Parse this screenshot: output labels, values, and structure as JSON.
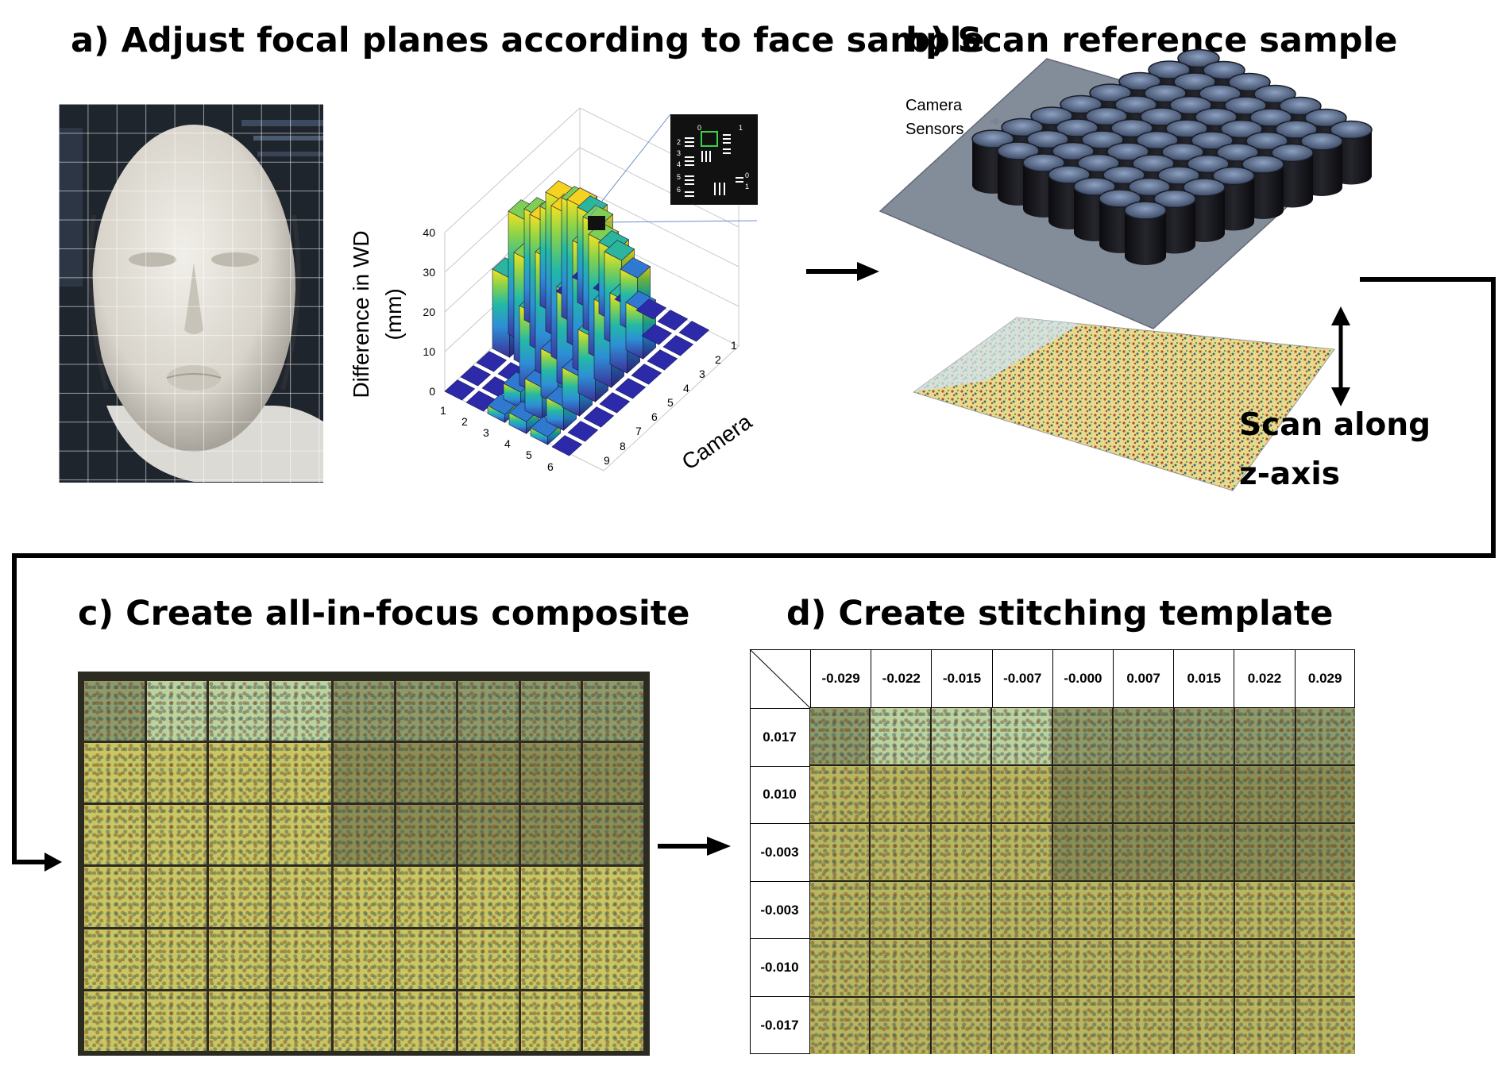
{
  "titles": {
    "a": "a) Adjust focal planes according to face sample",
    "b": "b) Scan reference sample",
    "c": "c) Create all-in-focus composite",
    "d": "d) Create stitching template"
  },
  "panel_a": {
    "chart_data": {
      "type": "bar3d",
      "zlabel_line1": "Difference in WD",
      "zlabel_line2": "(mm)",
      "axis_label_camera": "Camera",
      "z_ticks": [
        "0",
        "10",
        "20",
        "30",
        "40"
      ],
      "x_ticks": [
        "1",
        "2",
        "3",
        "4",
        "5",
        "6"
      ],
      "y_ticks": [
        "1",
        "2",
        "3",
        "4",
        "5",
        "6",
        "7",
        "8",
        "9"
      ],
      "zlim": [
        0,
        40
      ],
      "inset_labels": [
        "0",
        "1",
        "2",
        "3",
        "4",
        "5",
        "6",
        "0",
        "1"
      ]
    }
  },
  "panel_b": {
    "camera_sensors_line1": "Camera",
    "camera_sensors_line2": "Sensors",
    "scan_label_line1": "Scan along",
    "scan_label_line2": "z-axis"
  },
  "panel_d": {
    "column_headers": [
      "-0.029",
      "-0.022",
      "-0.015",
      "-0.007",
      "-0.000",
      "0.007",
      "0.015",
      "0.022",
      "0.029"
    ],
    "row_headers": [
      "0.017",
      "0.010",
      "-0.003",
      "-0.003",
      "-0.010",
      "-0.017"
    ]
  },
  "colors": {
    "bar_low": "#3b2f98",
    "bar_mid": "#23b9a5",
    "bar_high": "#f7e31f",
    "composite": "#c9c663",
    "arrow": "#000000"
  }
}
